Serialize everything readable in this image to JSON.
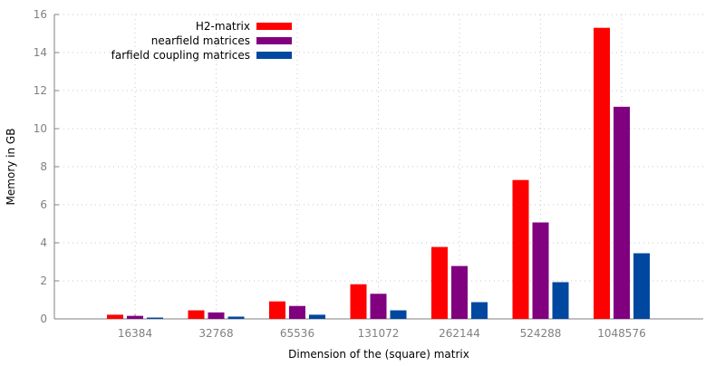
{
  "chart_data": {
    "type": "bar",
    "title": "",
    "xlabel": "Dimension of the (square) matrix",
    "ylabel": "Memory in GB",
    "categories": [
      "16384",
      "32768",
      "65536",
      "131072",
      "262144",
      "524288",
      "1048576"
    ],
    "ylim": [
      0,
      16
    ],
    "yticks": [
      "0",
      "2",
      "4",
      "6",
      "8",
      "10",
      "12",
      "14",
      "16"
    ],
    "grid": true,
    "legend_position": "top-left",
    "series": [
      {
        "name": "H2-matrix",
        "color": "#ff0000",
        "values": [
          0.22,
          0.45,
          0.92,
          1.82,
          3.78,
          7.3,
          15.3
        ]
      },
      {
        "name": "nearfield matrices",
        "color": "#800080",
        "values": [
          0.16,
          0.34,
          0.68,
          1.32,
          2.78,
          5.07,
          11.15
        ]
      },
      {
        "name": "farfield coupling matrices",
        "color": "#0047a0",
        "values": [
          0.07,
          0.12,
          0.22,
          0.45,
          0.88,
          1.93,
          3.45
        ]
      }
    ]
  }
}
